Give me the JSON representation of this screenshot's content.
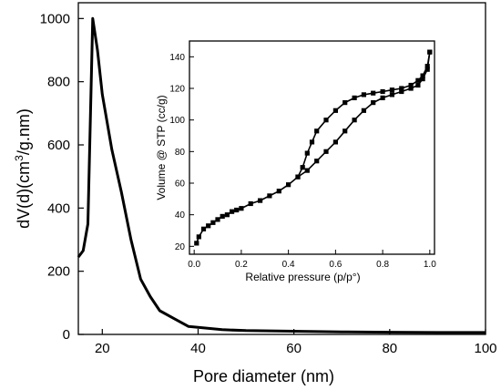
{
  "chart_data": [
    {
      "type": "line",
      "xlabel": "Pore diameter (nm)",
      "ylabel_parts": [
        "dV(d)(cm",
        "3",
        "/g.nm)"
      ],
      "xlim": [
        15,
        100
      ],
      "ylim": [
        0,
        1050
      ],
      "xticks": [
        20,
        40,
        60,
        80,
        100
      ],
      "yticks": [
        0,
        200,
        400,
        600,
        800,
        1000
      ],
      "grid": false,
      "series": [
        {
          "color": "#000000",
          "x": [
            15,
            16,
            17,
            18,
            19,
            20,
            22,
            24,
            26,
            28,
            30,
            32,
            35,
            38,
            45,
            50,
            60,
            70,
            80,
            90,
            100
          ],
          "y": [
            245,
            265,
            350,
            1000,
            900,
            760,
            585,
            450,
            300,
            175,
            120,
            75,
            50,
            25,
            15,
            12,
            10,
            8,
            7,
            6,
            6
          ]
        }
      ]
    },
    {
      "type": "line",
      "xlabel": "Relative pressure (p/p°)",
      "ylabel": "Volume @ STP (cc/g)",
      "xlim": [
        -0.02,
        1.02
      ],
      "ylim": [
        15,
        150
      ],
      "xticks": [
        0.0,
        0.2,
        0.4,
        0.6,
        0.8,
        1.0
      ],
      "xtick_labels": [
        "0.0",
        "0.2",
        "0.4",
        "0.6",
        "0.8",
        "1.0"
      ],
      "yticks": [
        20,
        40,
        60,
        80,
        100,
        120,
        140
      ],
      "grid": false,
      "series": [
        {
          "marker": "square",
          "color": "#000000",
          "x": [
            0.01,
            0.02,
            0.04,
            0.06,
            0.08,
            0.1,
            0.12,
            0.14,
            0.16,
            0.18,
            0.2,
            0.24,
            0.28,
            0.32,
            0.36,
            0.4,
            0.44,
            0.48,
            0.52,
            0.56,
            0.6,
            0.64,
            0.68,
            0.72,
            0.76,
            0.8,
            0.84,
            0.88,
            0.92,
            0.95,
            0.97,
            0.99,
            1.0
          ],
          "y": [
            22,
            26,
            31,
            33,
            35,
            37,
            39,
            40,
            42,
            43,
            44,
            47,
            49,
            52,
            55,
            59,
            64,
            68,
            74,
            80,
            86,
            93,
            100,
            106,
            111,
            114,
            116,
            118,
            120,
            122,
            126,
            132,
            143
          ]
        },
        {
          "marker": "square",
          "color": "#000000",
          "x": [
            1.0,
            0.99,
            0.97,
            0.95,
            0.92,
            0.88,
            0.84,
            0.8,
            0.76,
            0.72,
            0.68,
            0.64,
            0.6,
            0.56,
            0.52,
            0.5,
            0.48,
            0.46,
            0.44
          ],
          "y": [
            143,
            134,
            128,
            125,
            122,
            120,
            119,
            118,
            117,
            116,
            114,
            111,
            106,
            100,
            93,
            86,
            79,
            70,
            64
          ]
        }
      ]
    }
  ]
}
